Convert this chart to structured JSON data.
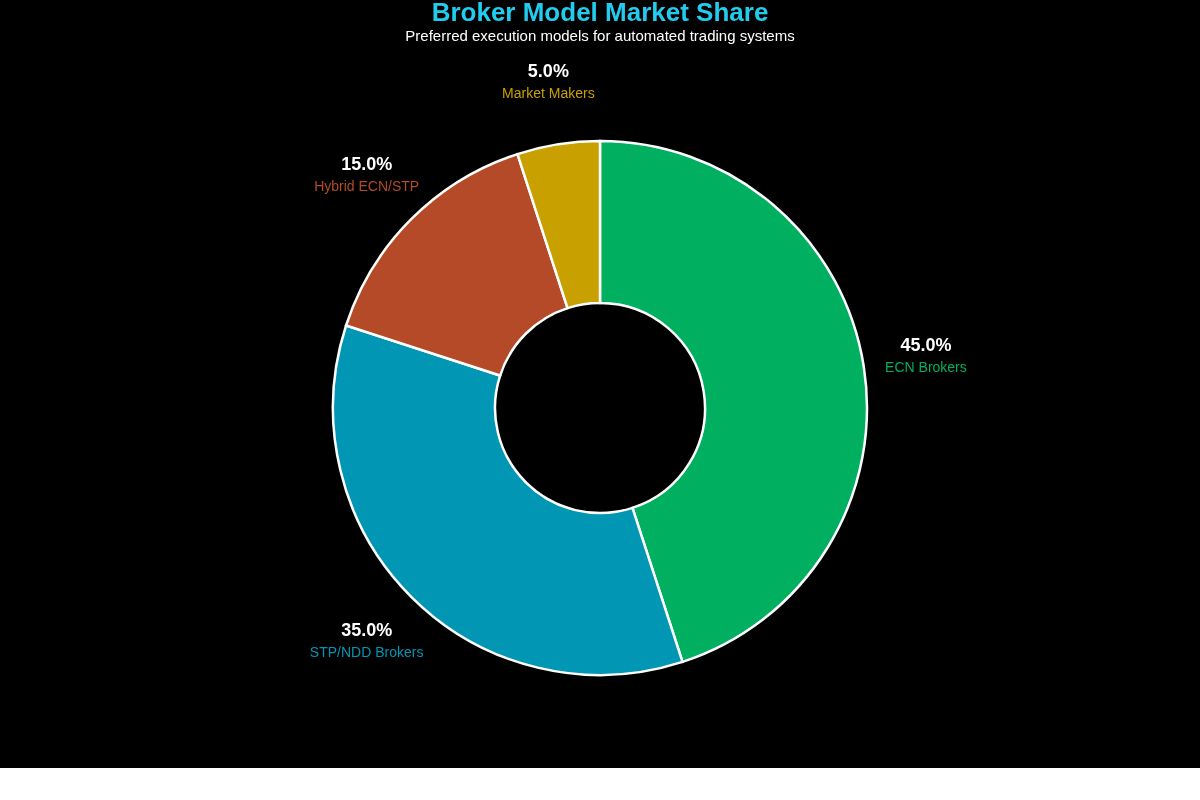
{
  "chart_data": {
    "type": "donut",
    "title": "Broker Model Market Share",
    "subtitle": "Preferred execution models for automated trading systems",
    "categories": [
      "ECN Brokers",
      "STP/NDD Brokers",
      "Hybrid ECN/STP",
      "Market Makers"
    ],
    "values": [
      45,
      35,
      15,
      5
    ],
    "colors": [
      "#00b060",
      "#0096b4",
      "#b44a28",
      "#c8a000"
    ],
    "value_labels": [
      "45.0%",
      "35.0%",
      "15.0%",
      "5.0%"
    ],
    "legend": false
  }
}
